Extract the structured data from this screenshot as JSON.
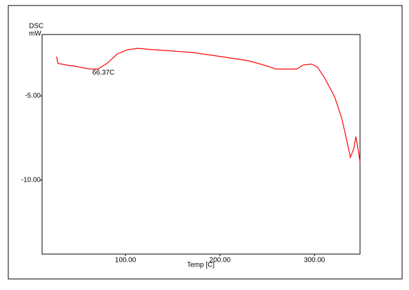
{
  "chart_data": {
    "type": "line",
    "y_unit_label": "DSC",
    "y_label": "mW",
    "x_label": "Temp [C]",
    "annotation": {
      "text": "66.37C",
      "x": 66.37,
      "y": -3.45
    },
    "x": [
      27.0,
      28.5,
      36.5,
      47.5,
      62.1,
      70.8,
      80.3,
      91.3,
      102.2,
      113.2,
      127.8,
      149.7,
      171.6,
      200.8,
      230.0,
      248.2,
      259.2,
      281.1,
      288.4,
      297.2,
      303.0,
      310.3,
      321.3,
      328.6,
      333.7,
      338.0,
      341.6,
      343.8,
      346.0,
      348.2
    ],
    "series": [
      {
        "color": "#ff0000",
        "values": [
          -2.66,
          -3.07,
          -3.15,
          -3.24,
          -3.4,
          -3.4,
          -3.07,
          -2.5,
          -2.25,
          -2.17,
          -2.25,
          -2.33,
          -2.42,
          -2.66,
          -2.91,
          -3.19,
          -3.4,
          -3.4,
          -3.15,
          -3.11,
          -3.28,
          -3.89,
          -5.04,
          -6.27,
          -7.5,
          -8.65,
          -8.11,
          -7.42,
          -8.11,
          -8.93
        ]
      }
    ],
    "xlim": [
      11.7,
      348.2
    ],
    "ylim": [
      -14.39,
      -1.35
    ],
    "xticks": [
      {
        "value": 100,
        "label": "100.00"
      },
      {
        "value": 200,
        "label": "200.00"
      },
      {
        "value": 300,
        "label": "300.00"
      }
    ],
    "yticks": [
      {
        "value": -5,
        "label": "-5.00"
      },
      {
        "value": -10,
        "label": "-10.00"
      }
    ]
  }
}
